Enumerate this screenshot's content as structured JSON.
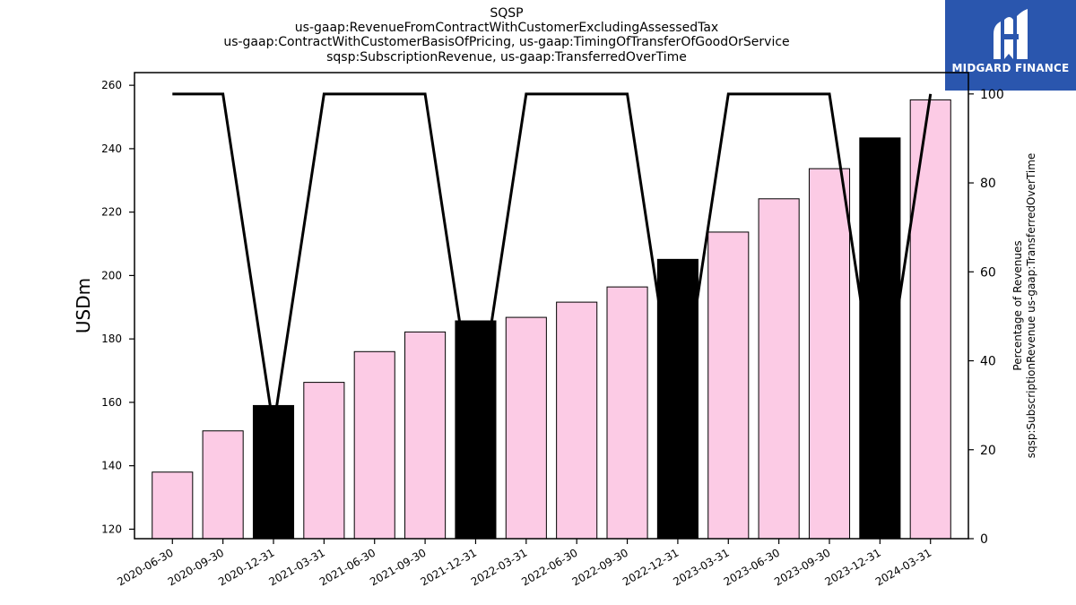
{
  "chart_data": {
    "type": "bar",
    "title_lines": [
      "SQSP",
      "us-gaap:RevenueFromContractWithCustomerExcludingAssessedTax",
      "us-gaap:ContractWithCustomerBasisOfPricing, us-gaap:TimingOfTransferOfGoodOrService",
      "sqsp:SubscriptionRevenue, us-gaap:TransferredOverTime"
    ],
    "ylabel": "USDm",
    "ylabel_right": [
      "Percentage of Revenues",
      "sqsp:SubscriptionRevenue us-gaap:TransferredOverTime"
    ],
    "categories": [
      "2020-06-30",
      "2020-09-30",
      "2020-12-31",
      "2021-03-31",
      "2021-06-30",
      "2021-09-30",
      "2021-12-31",
      "2022-03-31",
      "2022-06-30",
      "2022-09-30",
      "2022-12-31",
      "2023-03-31",
      "2023-06-30",
      "2023-09-30",
      "2023-12-31",
      "2024-03-31"
    ],
    "series": [
      {
        "type": "bar",
        "axis": "left",
        "values": [
          138.0,
          151.0,
          159.0,
          166.3,
          176.0,
          182.2,
          185.7,
          186.8,
          191.6,
          196.4,
          205.1,
          213.7,
          224.2,
          233.7,
          243.4,
          255.4
        ],
        "highlight": [
          false,
          false,
          true,
          false,
          false,
          false,
          true,
          false,
          false,
          false,
          true,
          false,
          false,
          false,
          true,
          false
        ]
      },
      {
        "type": "line",
        "axis": "right",
        "values": [
          100,
          100,
          25,
          100,
          100,
          100,
          25,
          100,
          100,
          100,
          25,
          100,
          100,
          100,
          25,
          100
        ]
      }
    ],
    "ylim": [
      117,
      264
    ],
    "yticks": [
      120,
      140,
      160,
      180,
      200,
      220,
      240,
      260
    ],
    "ylim_right": [
      0,
      104.8
    ],
    "yticks_right": [
      0,
      20,
      40,
      60,
      80,
      100
    ],
    "colors": {
      "bar": "#fccbe5",
      "bar_highlight": "#000000",
      "line": "#000000"
    },
    "grid": false
  },
  "logo": {
    "text": "MIDGARD FINANCE",
    "color": "#2a56ae"
  }
}
